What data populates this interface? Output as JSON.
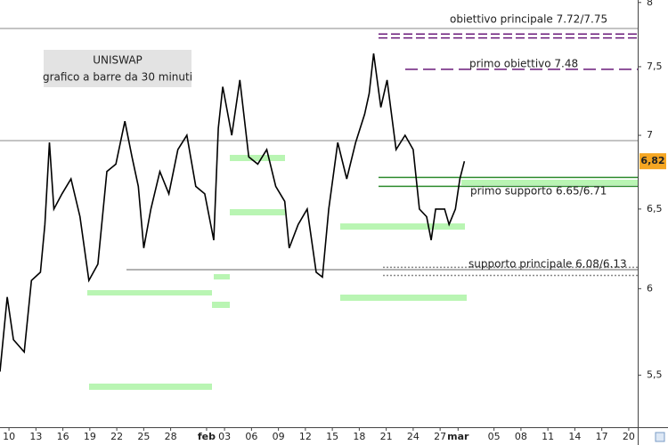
{
  "chart_data": {
    "type": "line",
    "title": "UNISWAP",
    "subtitle": "grafico a barre da 30 minuti",
    "log_scale": true,
    "xlim": [
      -1,
      70
    ],
    "ylim": [
      5.22,
      8.02
    ],
    "yticks": [
      {
        "value": 5.5,
        "label": "5,5"
      },
      6,
      {
        "value": 6.5,
        "label": "6,5"
      },
      7,
      {
        "value": 7.5,
        "label": "7,5"
      },
      8
    ],
    "xticks": [
      {
        "value": 0,
        "label": "10"
      },
      {
        "value": 3,
        "label": "13"
      },
      {
        "value": 6,
        "label": "16"
      },
      {
        "value": 9,
        "label": "19"
      },
      {
        "value": 12,
        "label": "22"
      },
      {
        "value": 15,
        "label": "25"
      },
      {
        "value": 18,
        "label": "28"
      },
      {
        "value": 22,
        "label": "feb"
      },
      {
        "value": 24,
        "label": "03"
      },
      {
        "value": 27,
        "label": "06"
      },
      {
        "value": 30,
        "label": "09"
      },
      {
        "value": 33,
        "label": "12"
      },
      {
        "value": 36,
        "label": "15"
      },
      {
        "value": 39,
        "label": "18"
      },
      {
        "value": 42,
        "label": "21"
      },
      {
        "value": 45,
        "label": "24"
      },
      {
        "value": 48,
        "label": "27"
      },
      {
        "value": 50,
        "label": "mar"
      },
      {
        "value": 54,
        "label": "05"
      },
      {
        "value": 57,
        "label": "08"
      },
      {
        "value": 60,
        "label": "11"
      },
      {
        "value": 63,
        "label": "14"
      },
      {
        "value": 66,
        "label": "17"
      },
      {
        "value": 69,
        "label": "20"
      }
    ],
    "series": [
      {
        "color": "#000000",
        "x": [
          -1.0,
          -0.2,
          0.5,
          1.7,
          2.5,
          3.5,
          4.0,
          4.5,
          5.0,
          5.9,
          6.9,
          7.9,
          8.9,
          9.9,
          10.9,
          11.9,
          12.9,
          13.7,
          14.4,
          15.0,
          15.8,
          16.8,
          17.8,
          18.8,
          19.8,
          20.8,
          21.8,
          22.8,
          23.3,
          23.8,
          24.8,
          25.7,
          26.7,
          27.7,
          28.7,
          29.7,
          30.7,
          31.2,
          32.2,
          33.2,
          34.2,
          34.9,
          35.6,
          36.6,
          37.6,
          38.6,
          39.6,
          40.1,
          40.6,
          41.4,
          42.1,
          43.1,
          44.1,
          45.0,
          45.7,
          46.5,
          47.0,
          47.5,
          48.5,
          49.0,
          49.7,
          50.2,
          50.7
        ],
        "values": [
          5.52,
          5.95,
          5.7,
          5.63,
          6.05,
          6.1,
          6.4,
          6.95,
          6.5,
          6.6,
          6.7,
          6.45,
          6.05,
          6.15,
          6.75,
          6.8,
          7.1,
          6.85,
          6.65,
          6.25,
          6.5,
          6.75,
          6.6,
          6.9,
          7.0,
          6.65,
          6.6,
          6.3,
          7.05,
          7.35,
          7.0,
          7.4,
          6.85,
          6.8,
          6.9,
          6.65,
          6.55,
          6.25,
          6.4,
          6.5,
          6.1,
          6.07,
          6.5,
          6.95,
          6.7,
          6.95,
          7.15,
          7.3,
          7.6,
          7.2,
          7.4,
          6.9,
          7.0,
          6.9,
          6.5,
          6.45,
          6.3,
          6.5,
          6.5,
          6.4,
          6.5,
          6.7,
          6.82
        ]
      }
    ],
    "last_price": {
      "value": 6.82,
      "label": "6,82"
    },
    "levels": [
      {
        "label": "obiettivo principale 7.72/7.75",
        "values": [
          7.72,
          7.75
        ],
        "color": "#6a1b7a"
      },
      {
        "label": "primo obiettivo 7.48",
        "values": [
          7.48
        ],
        "color": "#6a1b7a"
      },
      {
        "label": "primo supporto 6.65/6.71",
        "values": [
          6.65,
          6.71
        ],
        "color": "#2e8b2e"
      },
      {
        "label": "supporto principale 6.08/6.13",
        "values": [
          6.08,
          6.13
        ],
        "color": "#888888"
      }
    ]
  }
}
